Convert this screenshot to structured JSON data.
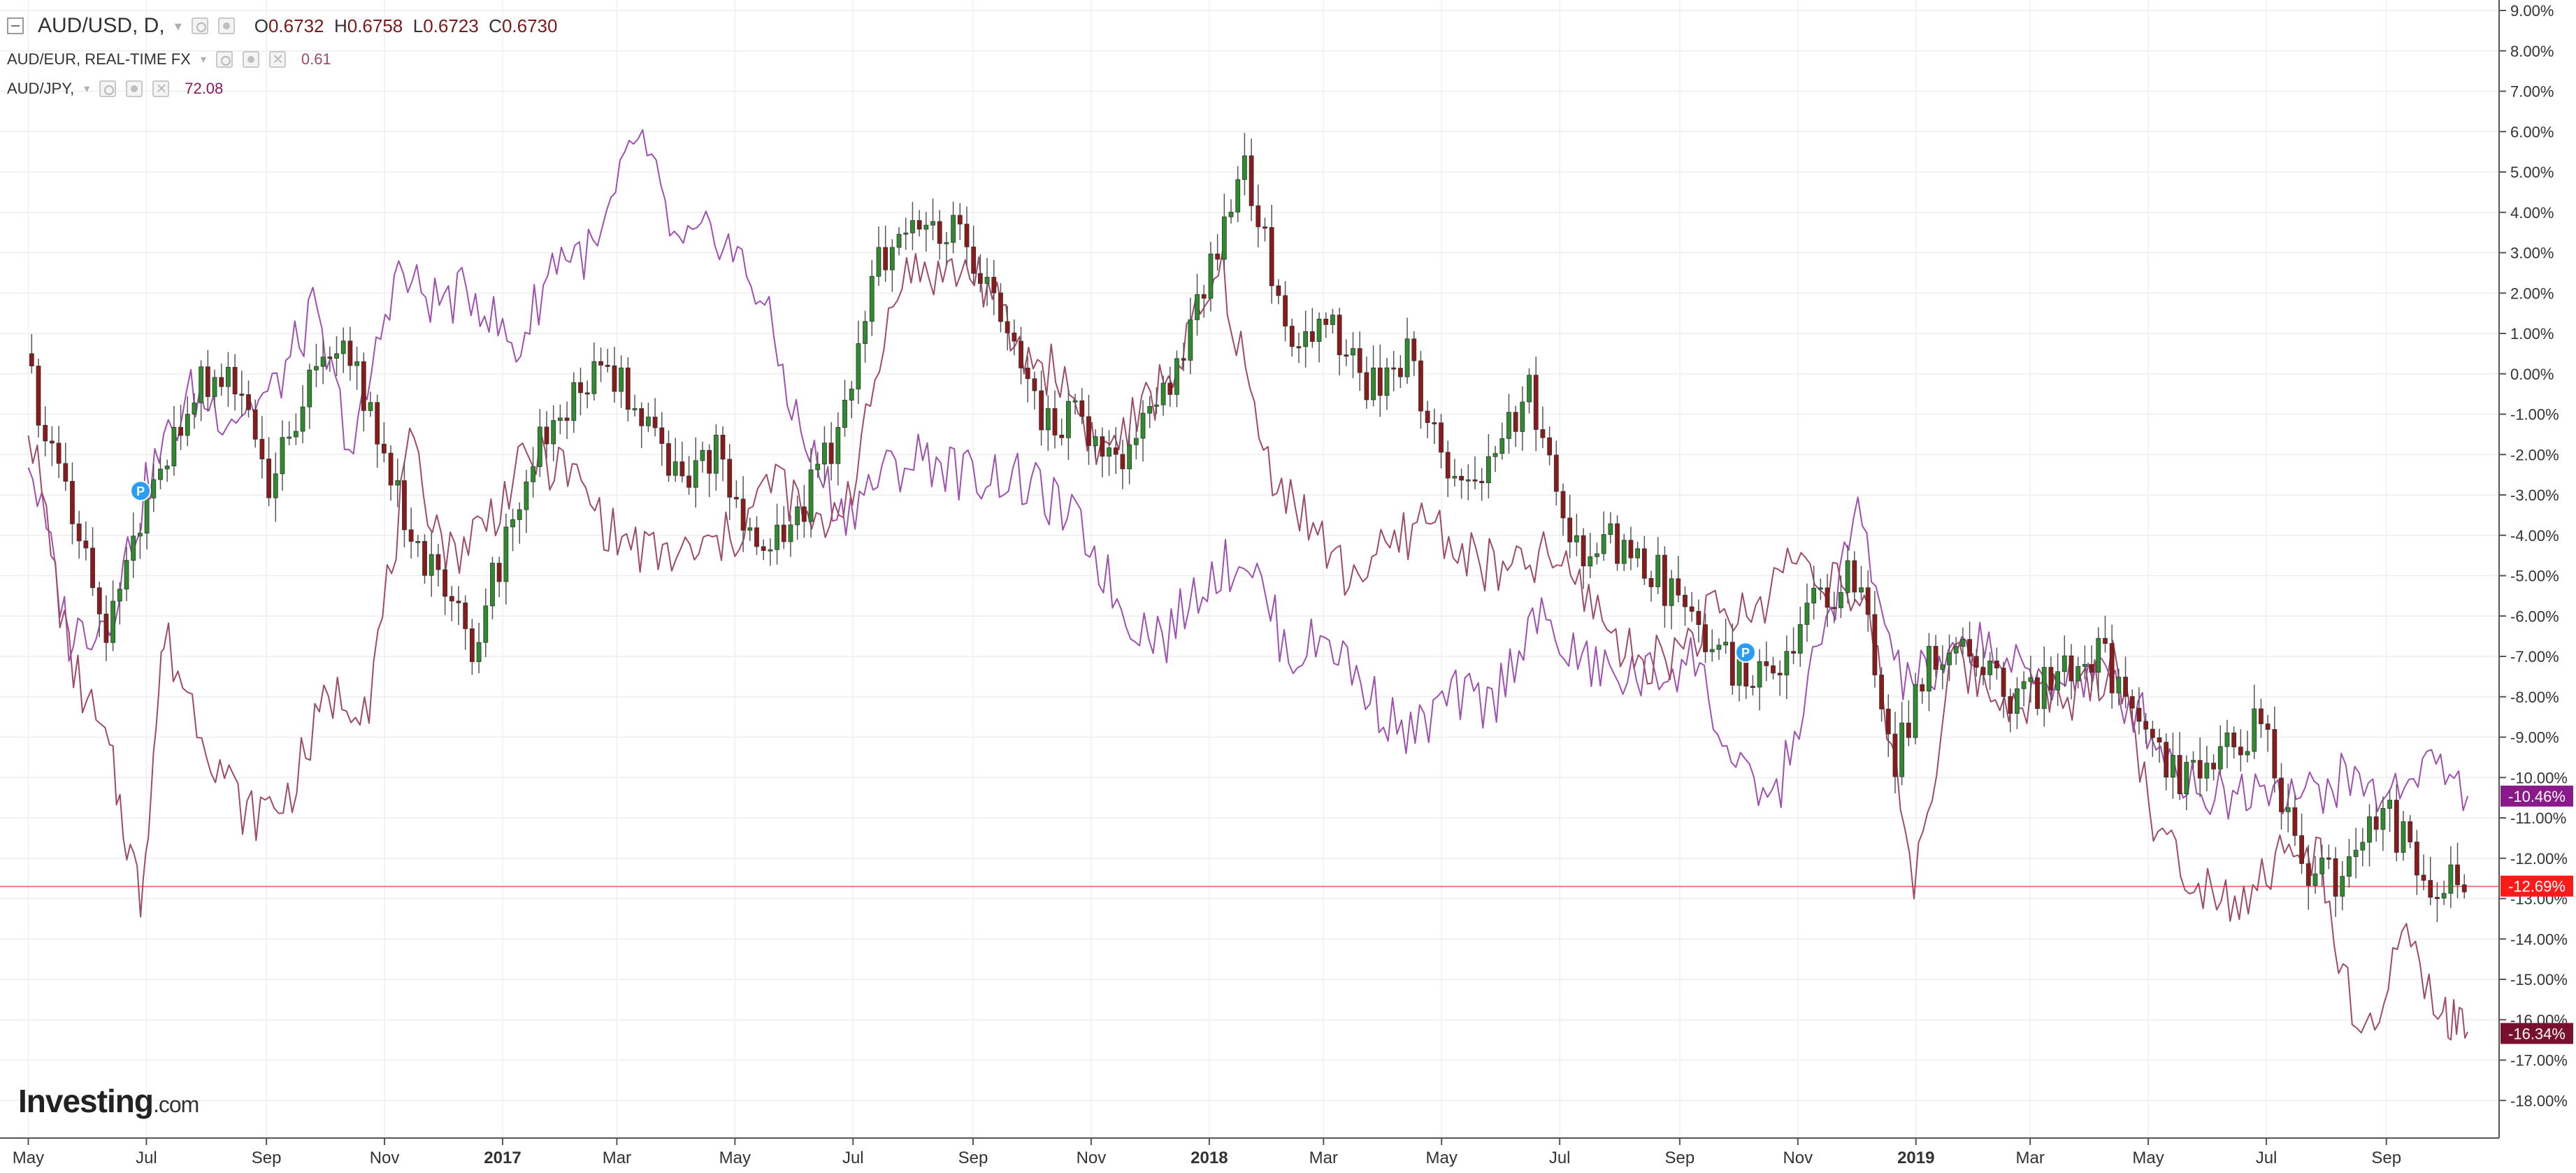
{
  "legend": {
    "main": {
      "symbol": "AUD/USD, D,",
      "o_label": "O",
      "o_value": "0.6732",
      "h_label": "H",
      "h_value": "0.6758",
      "l_label": "L",
      "l_value": "0.6723",
      "c_label": "C",
      "c_value": "0.6730"
    },
    "compare1": {
      "symbol": "AUD/EUR, REAL-TIME FX",
      "value": "0.61"
    },
    "compare2": {
      "symbol": "AUD/JPY,",
      "value": "72.08"
    }
  },
  "watermark": {
    "brand": "Investing",
    "domain": ".com"
  },
  "colors": {
    "up_candle": "#2e8b2e",
    "down_candle": "#8b1a1a",
    "wick": "#555555",
    "aud_eur_line": "#a04a6a",
    "aud_jpy_line": "#a050b0",
    "baseline": "#f08080",
    "badge_usd": "#ff1a1a",
    "badge_eur": "#7a1030",
    "badge_jpy": "#8a1a8a",
    "marker_p": "#2a9df4"
  },
  "chart_data": {
    "type": "line",
    "y_unit": "%",
    "x_axis_ticks": [
      "May",
      "Jul",
      "Sep",
      "Nov",
      "2017",
      "Mar",
      "May",
      "Jul",
      "Sep",
      "Nov",
      "2018",
      "Mar",
      "May",
      "Jul",
      "Sep",
      "Nov",
      "2019",
      "Mar",
      "May",
      "Jul",
      "Sep"
    ],
    "bold_ticks": [
      "2017",
      "2018",
      "2019"
    ],
    "y_ticks": [
      "9.00%",
      "8.00%",
      "7.00%",
      "6.00%",
      "5.00%",
      "4.00%",
      "3.00%",
      "2.00%",
      "1.00%",
      "0.00%",
      "-1.00%",
      "-2.00%",
      "-3.00%",
      "-4.00%",
      "-5.00%",
      "-6.00%",
      "-7.00%",
      "-8.00%",
      "-9.00%",
      "-10.00%",
      "-11.00%",
      "-12.00%",
      "-13.00%",
      "-14.00%",
      "-15.00%",
      "-16.00%",
      "-17.00%",
      "-18.00%"
    ],
    "ylim": [
      -19,
      9.3
    ],
    "grid": true,
    "current_value_labels": [
      {
        "series": "AUD/JPY",
        "value": "-10.46%"
      },
      {
        "series": "AUD/USD",
        "value": "-12.69%"
      },
      {
        "series": "AUD/EUR",
        "value": "-16.34%"
      }
    ],
    "markers": [
      {
        "label": "P",
        "date": "2016-06-28",
        "value": -2.9
      },
      {
        "label": "P",
        "date": "2018-10-05",
        "value": -6.9
      }
    ],
    "series": [
      {
        "name": "AUD/USD",
        "style": "candlestick",
        "x": [
          "2016-05-01",
          "2016-05-22",
          "2016-06-12",
          "2016-07-03",
          "2016-07-24",
          "2016-08-14",
          "2016-09-04",
          "2016-09-25",
          "2016-10-16",
          "2016-11-06",
          "2016-11-27",
          "2016-12-18",
          "2017-01-08",
          "2017-01-29",
          "2017-02-19",
          "2017-03-12",
          "2017-04-02",
          "2017-04-23",
          "2017-05-14",
          "2017-06-04",
          "2017-06-25",
          "2017-07-16",
          "2017-08-06",
          "2017-08-27",
          "2017-09-17",
          "2017-10-08",
          "2017-10-29",
          "2017-11-19",
          "2017-12-10",
          "2017-12-31",
          "2018-01-21",
          "2018-02-11",
          "2018-03-04",
          "2018-03-25",
          "2018-04-15",
          "2018-05-06",
          "2018-05-27",
          "2018-06-17",
          "2018-07-08",
          "2018-07-29",
          "2018-08-19",
          "2018-09-09",
          "2018-09-30",
          "2018-10-21",
          "2018-11-11",
          "2018-12-02",
          "2018-12-23",
          "2019-01-13",
          "2019-02-03",
          "2019-02-24",
          "2019-03-17",
          "2019-04-07",
          "2019-04-28",
          "2019-05-19",
          "2019-06-09",
          "2019-06-30",
          "2019-07-21",
          "2019-08-11",
          "2019-09-01",
          "2019-09-22",
          "2019-10-13"
        ],
        "values": [
          0.5,
          -3.2,
          -6.5,
          -3.4,
          -0.5,
          0.0,
          -2.8,
          -0.4,
          0.5,
          -2.5,
          -5.0,
          -6.8,
          -3.5,
          -1.0,
          -0.2,
          -0.5,
          -2.5,
          -2.0,
          -4.8,
          -3.5,
          -1.5,
          3.0,
          3.4,
          4.0,
          1.0,
          -1.0,
          -1.2,
          -2.5,
          -0.5,
          2.0,
          5.2,
          1.0,
          1.5,
          -0.5,
          0.5,
          -2.8,
          -2.4,
          -0.5,
          -4.5,
          -4.2,
          -4.8,
          -6.0,
          -7.2,
          -7.8,
          -5.5,
          -5.0,
          -9.5,
          -6.8,
          -7.2,
          -8.3,
          -7.5,
          -6.8,
          -9.0,
          -10.2,
          -9.5,
          -8.6,
          -12.2,
          -12.5,
          -10.8,
          -12.4,
          -12.7
        ]
      },
      {
        "name": "AUD/EUR",
        "style": "line",
        "x": [
          "2016-05-01",
          "2016-05-22",
          "2016-06-12",
          "2016-06-28",
          "2016-07-10",
          "2016-08-01",
          "2016-08-22",
          "2016-09-12",
          "2016-10-03",
          "2016-10-24",
          "2016-11-14",
          "2016-12-05",
          "2016-12-26",
          "2017-01-16",
          "2017-02-06",
          "2017-02-27",
          "2017-03-20",
          "2017-04-10",
          "2017-05-01",
          "2017-05-22",
          "2017-06-12",
          "2017-07-03",
          "2017-07-24",
          "2017-08-14",
          "2017-09-04",
          "2017-09-25",
          "2017-10-16",
          "2017-11-06",
          "2017-11-27",
          "2017-12-18",
          "2018-01-08",
          "2018-01-29",
          "2018-02-19",
          "2018-03-12",
          "2018-04-02",
          "2018-04-23",
          "2018-05-14",
          "2018-06-04",
          "2018-06-25",
          "2018-07-16",
          "2018-08-06",
          "2018-08-27",
          "2018-09-17",
          "2018-10-08",
          "2018-10-29",
          "2018-11-19",
          "2018-12-10",
          "2018-12-31",
          "2019-01-21",
          "2019-02-11",
          "2019-03-04",
          "2019-03-25",
          "2019-04-15",
          "2019-05-06",
          "2019-05-27",
          "2019-06-17",
          "2019-07-08",
          "2019-07-29",
          "2019-08-19",
          "2019-09-09",
          "2019-09-30",
          "2019-10-13"
        ],
        "values": [
          -1.0,
          -7.0,
          -9.5,
          -13.0,
          -6.5,
          -9.0,
          -11.0,
          -10.5,
          -8.0,
          -8.0,
          -2.0,
          -4.5,
          -3.5,
          -2.0,
          -2.5,
          -4.0,
          -4.5,
          -4.5,
          -4.0,
          -2.5,
          -4.0,
          -2.5,
          2.5,
          2.5,
          2.5,
          0.5,
          0.0,
          -2.0,
          -1.0,
          0.5,
          2.5,
          -2.0,
          -3.5,
          -5.0,
          -4.5,
          -3.5,
          -4.5,
          -5.0,
          -4.5,
          -5.5,
          -7.0,
          -7.0,
          -6.0,
          -6.0,
          -4.5,
          -5.0,
          -6.5,
          -12.5,
          -7.0,
          -8.0,
          -8.0,
          -8.0,
          -7.0,
          -11.5,
          -12.5,
          -13.0,
          -12.0,
          -12.0,
          -17.0,
          -14.0,
          -16.0,
          -16.3
        ]
      },
      {
        "name": "AUD/JPY",
        "style": "line",
        "x": [
          "2016-05-01",
          "2016-05-22",
          "2016-06-12",
          "2016-07-03",
          "2016-07-24",
          "2016-08-14",
          "2016-09-04",
          "2016-09-25",
          "2016-10-16",
          "2016-11-06",
          "2016-11-27",
          "2016-12-18",
          "2017-01-08",
          "2017-01-29",
          "2017-02-19",
          "2017-03-12",
          "2017-04-02",
          "2017-04-23",
          "2017-05-14",
          "2017-06-04",
          "2017-06-25",
          "2017-07-16",
          "2017-08-06",
          "2017-08-27",
          "2017-09-17",
          "2017-10-08",
          "2017-10-29",
          "2017-11-19",
          "2017-12-10",
          "2017-12-31",
          "2018-01-21",
          "2018-02-11",
          "2018-03-04",
          "2018-03-25",
          "2018-04-15",
          "2018-05-06",
          "2018-05-27",
          "2018-06-17",
          "2018-07-08",
          "2018-07-29",
          "2018-08-19",
          "2018-09-09",
          "2018-09-30",
          "2018-10-21",
          "2018-11-11",
          "2018-12-02",
          "2018-12-23",
          "2019-01-13",
          "2019-02-03",
          "2019-02-24",
          "2019-03-17",
          "2019-04-07",
          "2019-04-28",
          "2019-05-19",
          "2019-06-09",
          "2019-06-30",
          "2019-07-21",
          "2019-08-11",
          "2019-09-01",
          "2019-09-22",
          "2019-10-13"
        ],
        "values": [
          -2.0,
          -6.5,
          -6.0,
          -2.5,
          -0.5,
          -1.0,
          -0.5,
          1.5,
          -2.0,
          2.5,
          1.8,
          2.0,
          0.5,
          3.0,
          3.0,
          6.0,
          3.0,
          3.5,
          2.0,
          -1.5,
          -3.5,
          -2.5,
          -2.0,
          -2.5,
          -2.5,
          -3.0,
          -4.0,
          -6.0,
          -6.5,
          -5.0,
          -4.5,
          -7.0,
          -6.5,
          -8.0,
          -9.0,
          -8.0,
          -8.2,
          -6.0,
          -7.0,
          -7.5,
          -7.5,
          -7.0,
          -10.0,
          -10.5,
          -7.0,
          -3.5,
          -7.5,
          -7.5,
          -6.5,
          -7.5,
          -7.5,
          -7.5,
          -8.5,
          -10.0,
          -10.5,
          -10.0,
          -10.5,
          -10.0,
          -10.5,
          -9.5,
          -10.46
        ]
      }
    ]
  }
}
